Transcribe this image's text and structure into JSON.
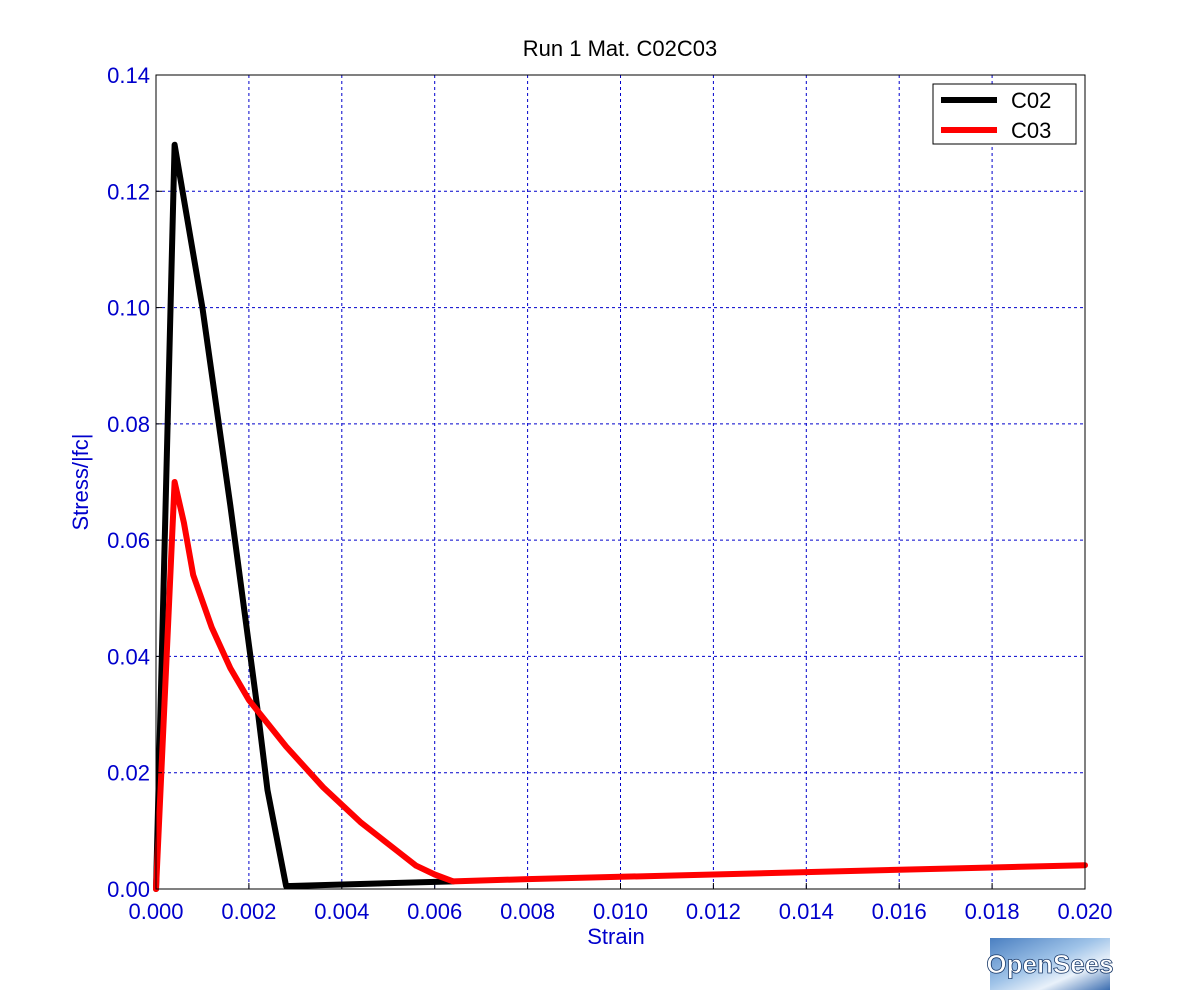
{
  "chart_data": {
    "type": "line",
    "title": "Run 1    Mat. C02C03",
    "xlabel": "Strain",
    "ylabel": "Stress/|fc|",
    "xlim": [
      0.0,
      0.02
    ],
    "ylim": [
      0.0,
      0.14
    ],
    "xticks": [
      "0.000",
      "0.002",
      "0.004",
      "0.006",
      "0.008",
      "0.010",
      "0.012",
      "0.014",
      "0.016",
      "0.018",
      "0.020"
    ],
    "yticks": [
      "0.00",
      "0.02",
      "0.04",
      "0.06",
      "0.08",
      "0.10",
      "0.12",
      "0.14"
    ],
    "grid": true,
    "legend_position": "top-right",
    "series": [
      {
        "name": "C02",
        "color": "#000000",
        "x": [
          0.0,
          0.0004,
          0.001,
          0.0016,
          0.0022,
          0.0024,
          0.0028,
          0.0064
        ],
        "y": [
          0.0,
          0.128,
          0.1,
          0.066,
          0.03,
          0.017,
          0.0005,
          0.0013
        ]
      },
      {
        "name": "C03",
        "color": "#ff0000",
        "x": [
          0.0,
          0.0004,
          0.0006,
          0.0008,
          0.0012,
          0.0016,
          0.002,
          0.0024,
          0.0028,
          0.0032,
          0.0036,
          0.004,
          0.0044,
          0.0048,
          0.0052,
          0.0056,
          0.006,
          0.0064,
          0.008,
          0.01,
          0.012,
          0.014,
          0.016,
          0.018,
          0.02
        ],
        "y": [
          0.0,
          0.07,
          0.063,
          0.054,
          0.045,
          0.038,
          0.0325,
          0.0285,
          0.0245,
          0.021,
          0.0175,
          0.0145,
          0.0115,
          0.009,
          0.0065,
          0.004,
          0.0025,
          0.0013,
          0.0017,
          0.0021,
          0.0025,
          0.0029,
          0.0033,
          0.0037,
          0.0041
        ]
      }
    ]
  },
  "logo": {
    "text": "OpenSees"
  }
}
